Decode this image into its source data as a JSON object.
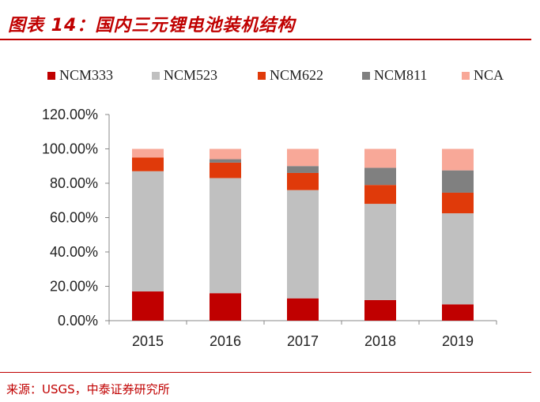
{
  "header": {
    "title": "图表 14：国内三元锂电池装机结构"
  },
  "source": {
    "text": "来源：USGS，中泰证券研究所"
  },
  "colors": {
    "accent": "#c00000",
    "NCM333": "#c00000",
    "NCM523": "#c0c0c0",
    "NCM622": "#e03a0a",
    "NCM811": "#808080",
    "NCA": "#f8a898"
  },
  "chart_data": {
    "type": "bar",
    "stacked": true,
    "title": "",
    "xlabel": "",
    "ylabel": "",
    "categories": [
      "2015",
      "2016",
      "2017",
      "2018",
      "2019"
    ],
    "ylim": [
      0,
      120
    ],
    "yticks": [
      "0.00%",
      "20.00%",
      "40.00%",
      "60.00%",
      "80.00%",
      "100.00%",
      "120.00%"
    ],
    "ytick_values": [
      0,
      20,
      40,
      60,
      80,
      100,
      120
    ],
    "legend_position": "top",
    "series": [
      {
        "name": "NCM333",
        "color": "#c00000",
        "values": [
          17,
          16,
          13,
          12,
          9.5
        ]
      },
      {
        "name": "NCM523",
        "color": "#c0c0c0",
        "values": [
          70,
          67,
          63,
          56,
          53
        ]
      },
      {
        "name": "NCM622",
        "color": "#e03a0a",
        "values": [
          8,
          9,
          10,
          11,
          12
        ]
      },
      {
        "name": "NCM811",
        "color": "#808080",
        "values": [
          0,
          2,
          4,
          10,
          13
        ]
      },
      {
        "name": "NCA",
        "color": "#f8a898",
        "values": [
          5,
          6,
          10,
          11,
          12.5
        ]
      }
    ]
  }
}
